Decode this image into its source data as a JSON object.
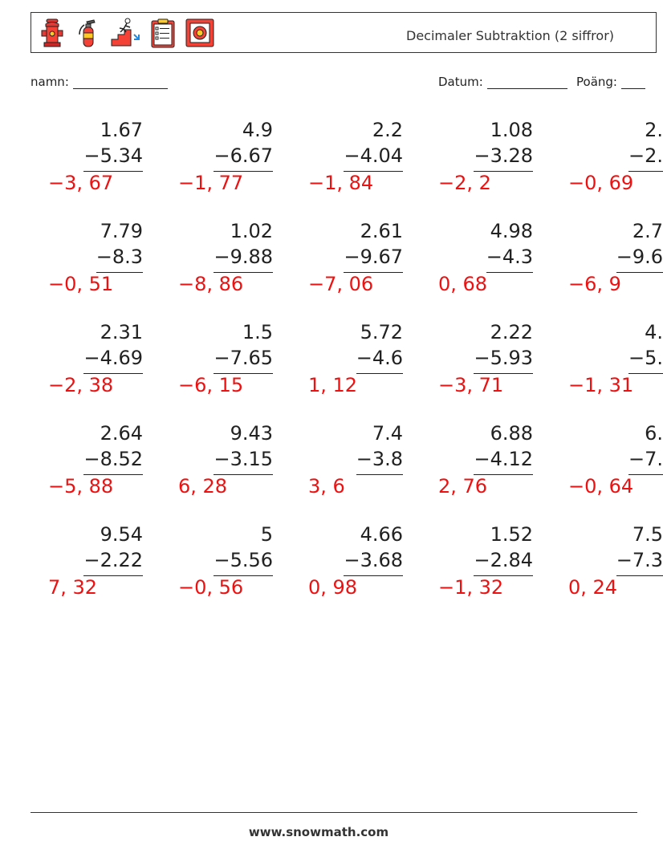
{
  "header": {
    "title": "Decimaler Subtraktion (2 siffror)",
    "icons": [
      "fire-hydrant-icon",
      "fire-extinguisher-icon",
      "emergency-exit-stairs-icon",
      "checklist-clipboard-icon",
      "alarm-button-icon"
    ]
  },
  "fields": {
    "name_label": "namn:",
    "date_label": "Datum:",
    "score_label": "Poäng:"
  },
  "problems": [
    [
      {
        "top": "1.67",
        "bottom": "−5.34",
        "answer": "−3, 67"
      },
      {
        "top": "4.9",
        "bottom": "−6.67",
        "answer": "−1, 77"
      },
      {
        "top": "2.2",
        "bottom": "−4.04",
        "answer": "−1, 84"
      },
      {
        "top": "1.08",
        "bottom": "−3.28",
        "answer": "−2, 2"
      },
      {
        "top": "2.",
        "bottom": "−2.",
        "answer": "−0, 69"
      }
    ],
    [
      {
        "top": "7.79",
        "bottom": "−8.3 ",
        "answer": "−0, 51"
      },
      {
        "top": "1.02",
        "bottom": "−9.88",
        "answer": "−8, 86"
      },
      {
        "top": "2.61",
        "bottom": "−9.67",
        "answer": "−7, 06"
      },
      {
        "top": "4.98",
        "bottom": "−4.3 ",
        "answer": "0, 68"
      },
      {
        "top": "2.7",
        "bottom": "−9.6",
        "answer": "−6, 9"
      }
    ],
    [
      {
        "top": "2.31",
        "bottom": "−4.69",
        "answer": "−2, 38"
      },
      {
        "top": "1.5",
        "bottom": "−7.65",
        "answer": "−6, 15"
      },
      {
        "top": "5.72",
        "bottom": "−4.6 ",
        "answer": "1, 12"
      },
      {
        "top": "2.22",
        "bottom": "−5.93",
        "answer": "−3, 71"
      },
      {
        "top": "4.",
        "bottom": "−5.",
        "answer": "−1, 31"
      }
    ],
    [
      {
        "top": "2.64",
        "bottom": "−8.52",
        "answer": "−5, 88"
      },
      {
        "top": "9.43",
        "bottom": "−3.15",
        "answer": "6, 28"
      },
      {
        "top": "7.4",
        "bottom": "−3.8",
        "answer": "3, 6"
      },
      {
        "top": "6.88",
        "bottom": "−4.12",
        "answer": "2, 76"
      },
      {
        "top": "6.",
        "bottom": "−7.",
        "answer": "−0, 64"
      }
    ],
    [
      {
        "top": "9.54",
        "bottom": "−2.22",
        "answer": "7, 32"
      },
      {
        "top": "5",
        "bottom": "−5.56",
        "answer": "−0, 56"
      },
      {
        "top": "4.66",
        "bottom": "−3.68",
        "answer": "0, 98"
      },
      {
        "top": "1.52",
        "bottom": "−2.84",
        "answer": "−1, 32"
      },
      {
        "top": "7.5",
        "bottom": "−7.3",
        "answer": "0, 24"
      }
    ]
  ],
  "footer": {
    "site": "www.snowmath.com"
  }
}
